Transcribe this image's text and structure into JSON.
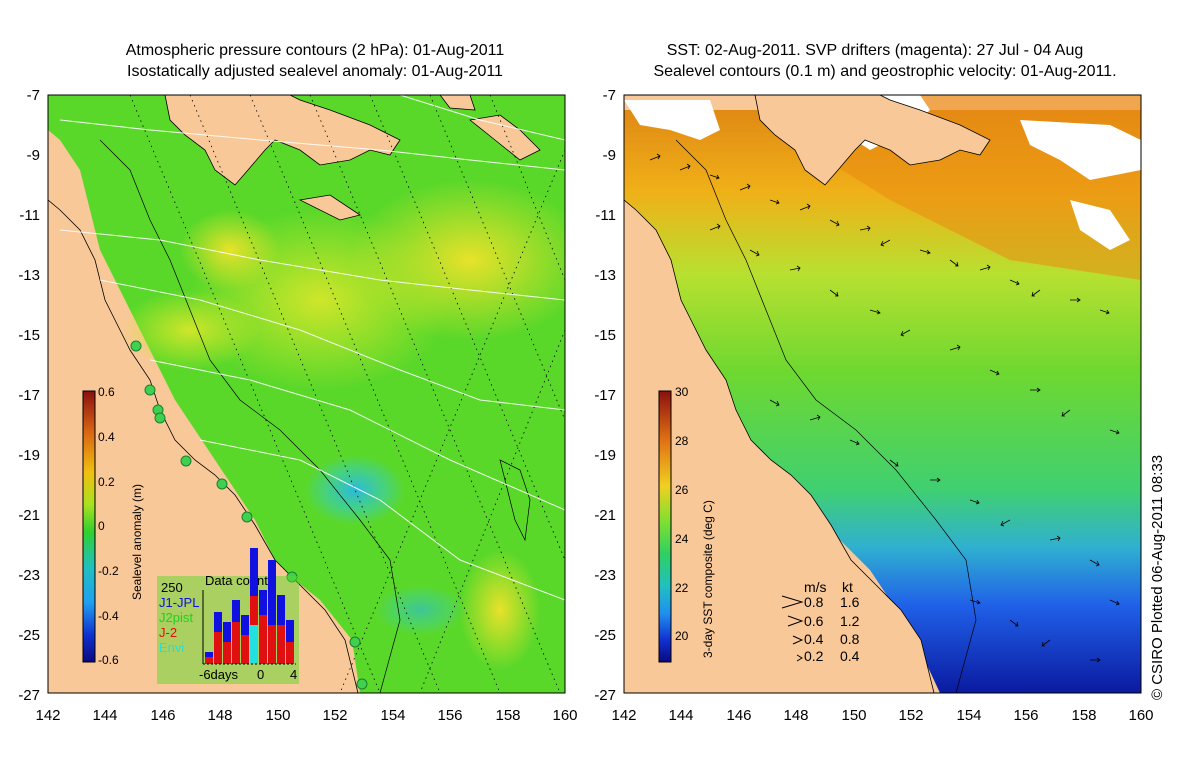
{
  "left_panel": {
    "title_line1": "Atmospheric pressure contours (2 hPa): 01-Aug-2011",
    "title_line2": "Isostatically adjusted sealevel anomaly: 01-Aug-2011",
    "colorbar": {
      "label": "Sealevel anomaly (m)",
      "ticks": [
        "0.6",
        "0.4",
        "0.2",
        "0",
        "-0.2",
        "-0.4",
        "-0.6"
      ],
      "range": [
        -0.6,
        0.6
      ]
    },
    "data_count": {
      "title": "Data count",
      "max_label": "250",
      "legend": [
        {
          "label": "J1-JPL",
          "color": "#1010e0"
        },
        {
          "label": "J2pist",
          "color": "#20d020"
        },
        {
          "label": "J-2",
          "color": "#e01010"
        },
        {
          "label": "Envi",
          "color": "#20e0e0"
        }
      ],
      "axis_labels": [
        "-6days",
        "0",
        "4"
      ]
    }
  },
  "right_panel": {
    "title_line1": "SST: 02-Aug-2011. SVP drifters (magenta): 27 Jul - 04 Aug",
    "title_line2": "Sealevel contours (0.1 m) and geostrophic velocity: 01-Aug-2011.",
    "colorbar": {
      "label": "3-day SST composite (deg C)",
      "ticks": [
        "30",
        "28",
        "26",
        "24",
        "22",
        "20"
      ],
      "range": [
        19,
        30
      ]
    },
    "velocity_legend": {
      "header_ms": "m/s",
      "header_kt": "kt",
      "rows": [
        {
          "ms": "0.8",
          "kt": "1.6"
        },
        {
          "ms": "0.6",
          "kt": "1.2"
        },
        {
          "ms": "0.4",
          "kt": "0.8"
        },
        {
          "ms": "0.2",
          "kt": "0.4"
        }
      ]
    }
  },
  "axes": {
    "x_ticks": [
      "142",
      "144",
      "146",
      "148",
      "150",
      "152",
      "154",
      "156",
      "158",
      "160"
    ],
    "y_ticks": [
      "-7",
      "-9",
      "-11",
      "-13",
      "-15",
      "-17",
      "-19",
      "-21",
      "-23",
      "-25",
      "-27"
    ]
  },
  "credit": "© CSIRO Plotted 06-Aug-2011 08:33",
  "colors": {
    "land": "#f9c898",
    "ocean_green": "#5ad82a",
    "ocean_yellow": "#c4e82c",
    "ocean_cyan": "#3fcfb0",
    "sst_orange": "#e98a12",
    "sst_blue": "#1f50e0",
    "sst_navy": "#0a1a9e"
  }
}
